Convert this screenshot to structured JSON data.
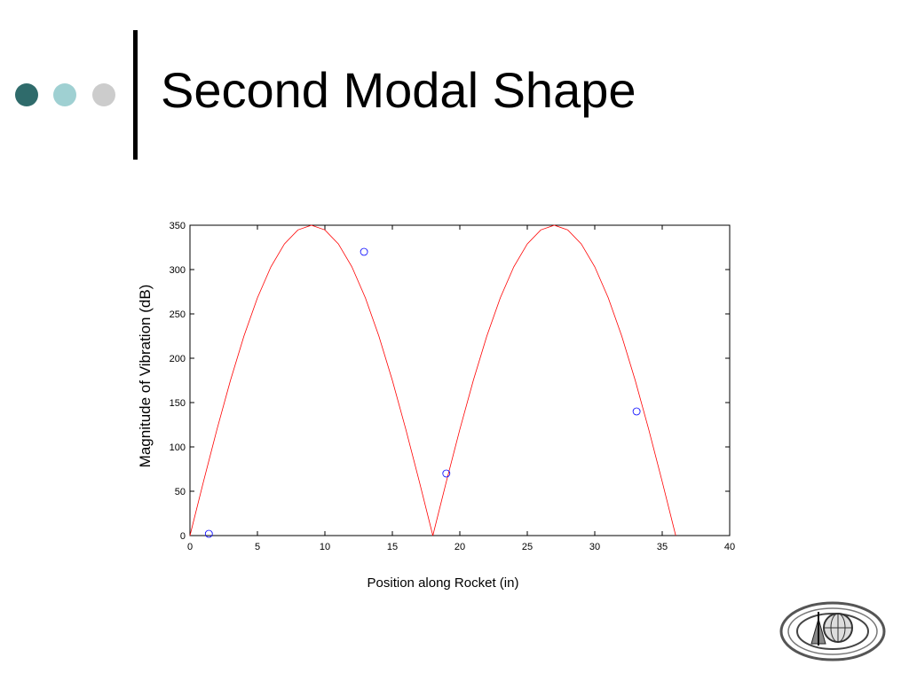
{
  "slide": {
    "title": "Second Modal Shape",
    "bullet_colors": [
      "#2f6b6b",
      "#9fd0d2",
      "#cccccc"
    ],
    "accent_bar_color": "#000000"
  },
  "logo": {
    "icon": "college-seal-icon"
  },
  "chart_data": {
    "type": "line",
    "title": "",
    "xlabel": "Position along Rocket (in)",
    "ylabel": "Magnitude of Vibration (dB)",
    "xlim": [
      0,
      40
    ],
    "ylim": [
      0,
      350
    ],
    "xticks": [
      0,
      5,
      10,
      15,
      20,
      25,
      30,
      35,
      40
    ],
    "yticks": [
      0,
      50,
      100,
      150,
      200,
      250,
      300,
      350
    ],
    "grid": false,
    "legend": "none",
    "series": [
      {
        "kind": "line",
        "color": "#ff0000",
        "description_curve": "abs_sine",
        "x": [
          0,
          1,
          2,
          3,
          4,
          5,
          6,
          7,
          8,
          9,
          10,
          11,
          12,
          13,
          14,
          15,
          16,
          17,
          18,
          19,
          20,
          21,
          22,
          23,
          24,
          25,
          26,
          27,
          28,
          29,
          30,
          31,
          32,
          33,
          34,
          35,
          36
        ],
        "y": [
          0,
          60.8,
          119.7,
          175,
          225,
          268.1,
          303.1,
          328.9,
          344.7,
          350,
          344.7,
          328.9,
          303.1,
          268.1,
          225,
          175,
          119.7,
          60.8,
          0,
          60.8,
          119.7,
          175,
          225,
          268.1,
          303.1,
          328.9,
          344.7,
          350,
          344.7,
          328.9,
          303.1,
          268.1,
          225,
          175,
          119.7,
          60.8,
          0
        ]
      },
      {
        "kind": "scatter",
        "color": "#0000ff",
        "marker": "circle",
        "x": [
          1.4,
          12.9,
          19.0,
          33.1
        ],
        "y": [
          2,
          320,
          70,
          140
        ]
      }
    ]
  }
}
